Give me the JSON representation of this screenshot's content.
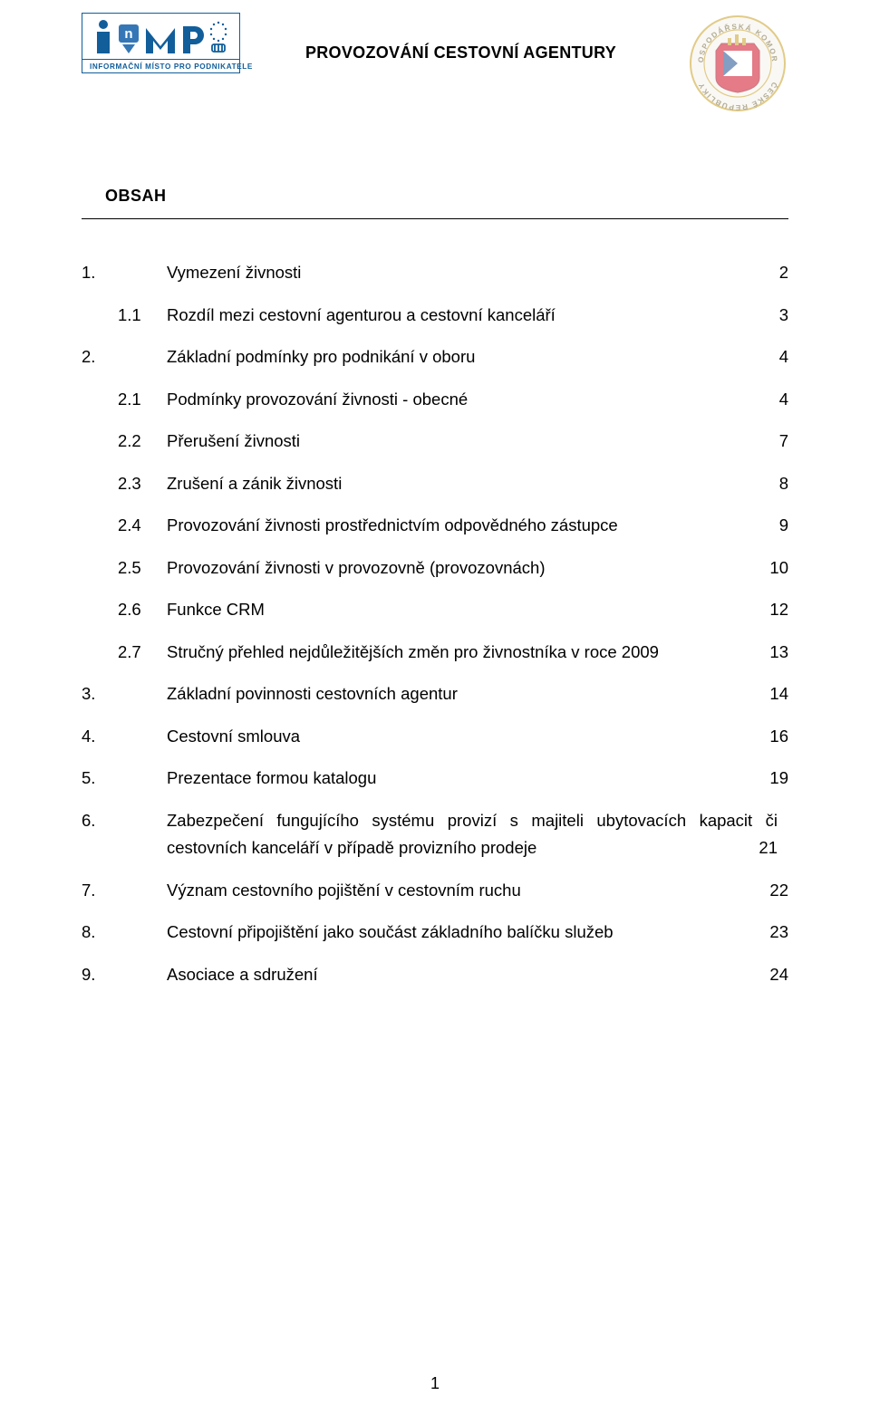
{
  "colors": {
    "logo_blue": "#115e9b",
    "logo_blue_light": "#3577b6",
    "text": "#000000",
    "bg": "#ffffff",
    "seal_red": "#ce1126",
    "seal_gold": "#c9a227",
    "seal_blue": "#1d4f91"
  },
  "header": {
    "logo_sub": "INFORMAČNÍ MÍSTO PRO PODNIKATELE",
    "title": "PROVOZOVÁNÍ CESTOVNÍ AGENTURY"
  },
  "section_heading": "OBSAH",
  "toc": [
    {
      "level": 0,
      "num": "1.",
      "text": "Vymezení živnosti",
      "page": "2"
    },
    {
      "level": 1,
      "num": "1.1",
      "text": "Rozdíl mezi cestovní agenturou a cestovní kanceláří",
      "page": "3"
    },
    {
      "level": 0,
      "num": "2.",
      "text": "Základní podmínky pro podnikání v oboru",
      "page": "4"
    },
    {
      "level": 1,
      "num": "2.1",
      "text": "Podmínky provozování živnosti - obecné",
      "page": "4"
    },
    {
      "level": 1,
      "num": "2.2",
      "text": "Přerušení živnosti",
      "page": "7"
    },
    {
      "level": 1,
      "num": "2.3",
      "text": "Zrušení a zánik živnosti",
      "page": "8"
    },
    {
      "level": 1,
      "num": "2.4",
      "text": "Provozování živnosti prostřednictvím odpovědného zástupce",
      "page": "9"
    },
    {
      "level": 1,
      "num": "2.5",
      "text": "Provozování živnosti v provozovně (provozovnách)",
      "page": "10"
    },
    {
      "level": 1,
      "num": "2.6",
      "text": "Funkce CRM",
      "page": "12"
    },
    {
      "level": 1,
      "num": "2.7",
      "text": "Stručný přehled nejdůležitějších změn pro živnostníka v roce 2009",
      "page": "13"
    },
    {
      "level": 0,
      "num": "3.",
      "text": "Základní povinnosti cestovních agentur",
      "page": "14"
    },
    {
      "level": 0,
      "num": "4.",
      "text": "Cestovní smlouva",
      "page": "16"
    },
    {
      "level": 0,
      "num": "5.",
      "text": "Prezentace formou katalogu",
      "page": "19"
    },
    {
      "level": 0,
      "num": "6.",
      "justified": true,
      "line1": "Zabezpečení fungujícího systému provizí s majiteli ubytovacích kapacit či",
      "line2": "cestovních kanceláří v případě provizního prodeje",
      "page": "21"
    },
    {
      "level": 0,
      "num": "7.",
      "text": "Význam cestovního pojištění v cestovním ruchu",
      "page": "22"
    },
    {
      "level": 0,
      "num": "8.",
      "text": "Cestovní připojištění jako součást základního balíčku služeb",
      "page": "23"
    },
    {
      "level": 0,
      "num": "9.",
      "text": "Asociace a sdružení",
      "page": "24"
    }
  ],
  "page_number": "1",
  "typography": {
    "body_fontsize_pt": 14,
    "heading_fontsize_pt": 14,
    "title_fontsize_pt": 14,
    "font_family": "Arial"
  }
}
